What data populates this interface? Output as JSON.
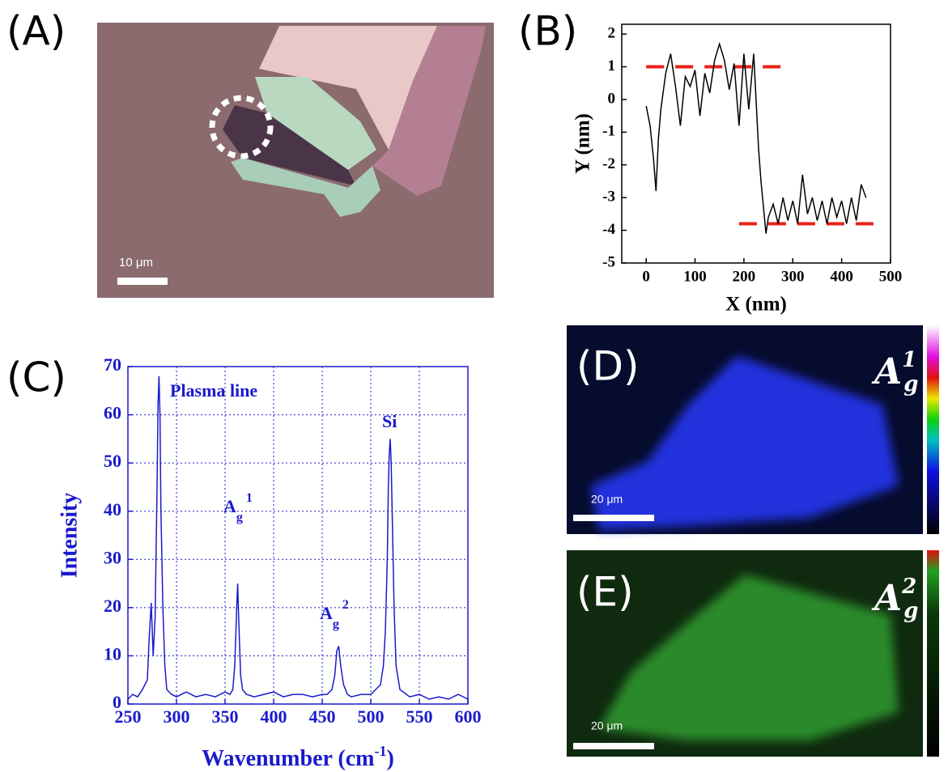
{
  "panel_labels": [
    "(A)",
    "(B)",
    "(C)",
    "(D)",
    "(E)"
  ],
  "image_a": {
    "scale_bar": "10 μm"
  },
  "image_d": {
    "scale_bar": "20 μm",
    "mode": "A",
    "mode_sub": "g",
    "mode_sup": "1"
  },
  "image_e": {
    "scale_bar": "20 μm",
    "mode": "A",
    "mode_sub": "g",
    "mode_sup": "2"
  },
  "chart_data": [
    {
      "type": "line",
      "x_label": "X (nm)",
      "y_label": "Y (nm)",
      "axis_color": "#000000",
      "xlim": [
        -50,
        500
      ],
      "ylim": [
        -5,
        2.3
      ],
      "xticks": [
        0,
        100,
        200,
        300,
        400,
        500
      ],
      "yticks": [
        -5,
        -4,
        -3,
        -2,
        -1,
        0,
        1,
        2
      ],
      "grid": false,
      "x": [
        0,
        8,
        15,
        20,
        25,
        30,
        40,
        50,
        60,
        70,
        80,
        90,
        100,
        110,
        120,
        130,
        140,
        150,
        160,
        170,
        180,
        190,
        200,
        210,
        220,
        230,
        235,
        240,
        245,
        250,
        260,
        270,
        280,
        290,
        300,
        310,
        320,
        330,
        340,
        350,
        360,
        370,
        380,
        390,
        400,
        410,
        420,
        430,
        440,
        450
      ],
      "series": [
        {
          "color": "#000000",
          "values": [
            -0.2,
            -0.8,
            -1.8,
            -2.8,
            -1.2,
            -0.3,
            0.8,
            1.4,
            0.4,
            -0.8,
            0.7,
            0.4,
            0.9,
            -0.5,
            0.8,
            0.2,
            1.2,
            1.7,
            1.2,
            0.3,
            1.1,
            -0.8,
            1.4,
            -0.3,
            1.4,
            -1.5,
            -2.5,
            -3.3,
            -4.1,
            -3.6,
            -3.2,
            -3.8,
            -3.0,
            -3.7,
            -3.1,
            -3.8,
            -2.3,
            -3.5,
            -3.0,
            -3.7,
            -3.1,
            -3.8,
            -3.0,
            -3.6,
            -3.1,
            -3.8,
            -3.0,
            -3.7,
            -2.6,
            -3.0
          ]
        }
      ],
      "reference_lines": [
        {
          "y": 1,
          "x": [
            0,
            290
          ],
          "color": "#e8201a"
        },
        {
          "y": -3.8,
          "x": [
            190,
            480
          ],
          "color": "#e8201a"
        }
      ]
    },
    {
      "type": "line",
      "x_label": {
        "text": "Wavenumber (cm",
        "superscript": "-1",
        "suffix": ")"
      },
      "y_label": "Intensity",
      "axis_color": "#1a1acc",
      "xlim": [
        250,
        600
      ],
      "ylim": [
        0,
        70
      ],
      "xticks": [
        250,
        300,
        350,
        400,
        450,
        500,
        550,
        600
      ],
      "yticks": [
        0,
        10,
        20,
        30,
        40,
        50,
        60,
        70
      ],
      "grid": true,
      "x": [
        250,
        255,
        260,
        265,
        270,
        272,
        274,
        276,
        278,
        280,
        281,
        282,
        283,
        284,
        286,
        288,
        290,
        295,
        300,
        310,
        320,
        330,
        340,
        350,
        355,
        358,
        360,
        362,
        363,
        364,
        366,
        368,
        372,
        380,
        390,
        400,
        410,
        420,
        430,
        440,
        450,
        455,
        460,
        463,
        465,
        467,
        469,
        472,
        476,
        480,
        490,
        500,
        505,
        510,
        513,
        515,
        517,
        518,
        519,
        520,
        521,
        522,
        524,
        526,
        530,
        540,
        550,
        560,
        570,
        580,
        590,
        600
      ],
      "series": [
        {
          "color": "#1a1acc",
          "values": [
            1,
            2,
            1.5,
            3,
            5,
            14,
            21,
            10,
            18,
            45,
            62,
            68,
            60,
            40,
            20,
            8,
            3,
            2,
            1.5,
            2.5,
            1.5,
            2,
            1.5,
            2.5,
            2,
            3,
            8,
            20,
            25,
            18,
            6,
            3,
            2,
            1.5,
            2,
            2.5,
            1.5,
            2,
            2,
            1.5,
            2,
            2,
            3,
            6,
            11,
            12,
            8,
            4,
            2,
            1.5,
            2,
            2,
            3,
            4,
            8,
            15,
            30,
            44,
            52,
            55,
            50,
            40,
            20,
            8,
            3,
            1.5,
            2,
            1,
            1.5,
            1,
            2,
            1
          ]
        }
      ],
      "annotations": [
        {
          "text": "Plasma line"
        },
        {
          "text": "A",
          "sub": "g",
          "sup": "1"
        },
        {
          "text": "A",
          "sub": "g",
          "sup": "2"
        },
        {
          "text": "Si"
        }
      ]
    }
  ]
}
